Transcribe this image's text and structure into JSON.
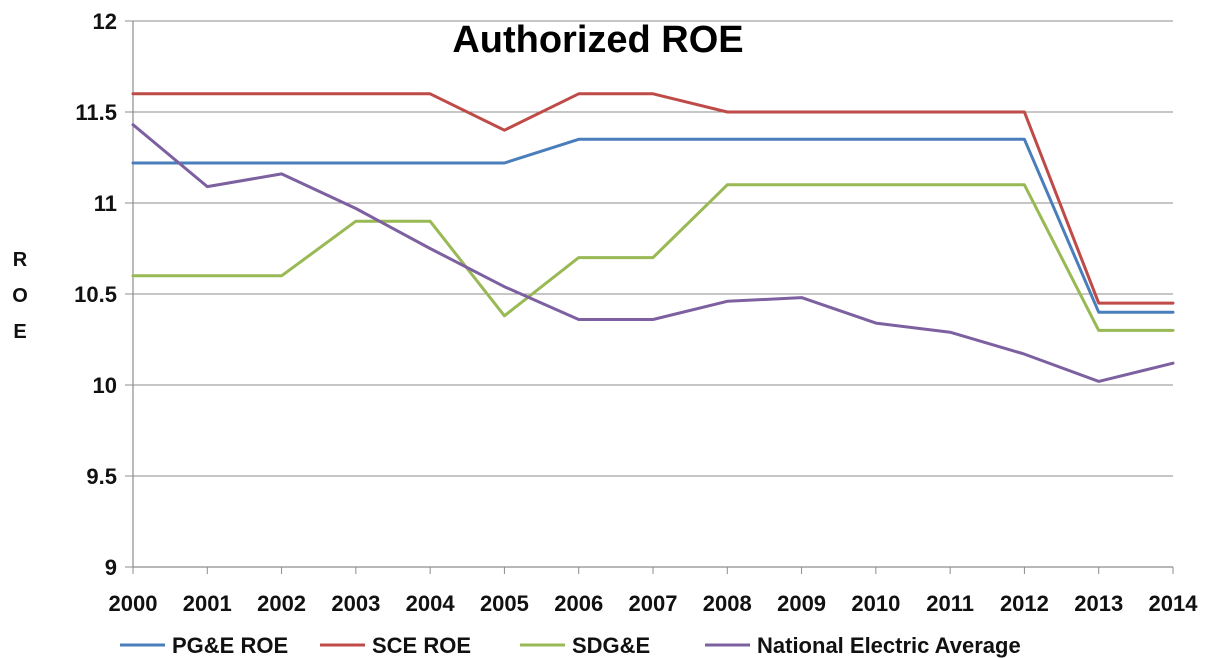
{
  "chart_data": {
    "type": "line",
    "title": "Authorized ROE",
    "xlabel": "",
    "ylabel": "ROE",
    "ylim": [
      9,
      12
    ],
    "yticks": [
      "9",
      "9.5",
      "10",
      "10.5",
      "11",
      "11.5",
      "12"
    ],
    "x": [
      "2000",
      "2001",
      "2002",
      "2003",
      "2004",
      "2005",
      "2006",
      "2007",
      "2008",
      "2009",
      "2010",
      "2011",
      "2012",
      "2013",
      "2014"
    ],
    "grid": true,
    "legend": "bottom",
    "series": [
      {
        "name": "PG&E ROE",
        "color": "#4a7ebb",
        "values": [
          11.22,
          11.22,
          11.22,
          11.22,
          11.22,
          11.22,
          11.35,
          11.35,
          11.35,
          11.35,
          11.35,
          11.35,
          11.35,
          10.4,
          10.4
        ]
      },
      {
        "name": "SCE ROE",
        "color": "#be4b48",
        "values": [
          11.6,
          11.6,
          11.6,
          11.6,
          11.6,
          11.4,
          11.6,
          11.6,
          11.5,
          11.5,
          11.5,
          11.5,
          11.5,
          10.45,
          10.45
        ]
      },
      {
        "name": "SDG&E",
        "color": "#98b954",
        "values": [
          10.6,
          10.6,
          10.6,
          10.9,
          10.9,
          10.38,
          10.7,
          10.7,
          11.1,
          11.1,
          11.1,
          11.1,
          11.1,
          10.3,
          10.3
        ]
      },
      {
        "name": "National Electric Average",
        "color": "#7d60a0",
        "values": [
          11.43,
          11.09,
          11.16,
          10.97,
          10.75,
          10.54,
          10.36,
          10.36,
          10.46,
          10.48,
          10.34,
          10.29,
          10.17,
          10.02,
          10.12
        ]
      }
    ]
  }
}
